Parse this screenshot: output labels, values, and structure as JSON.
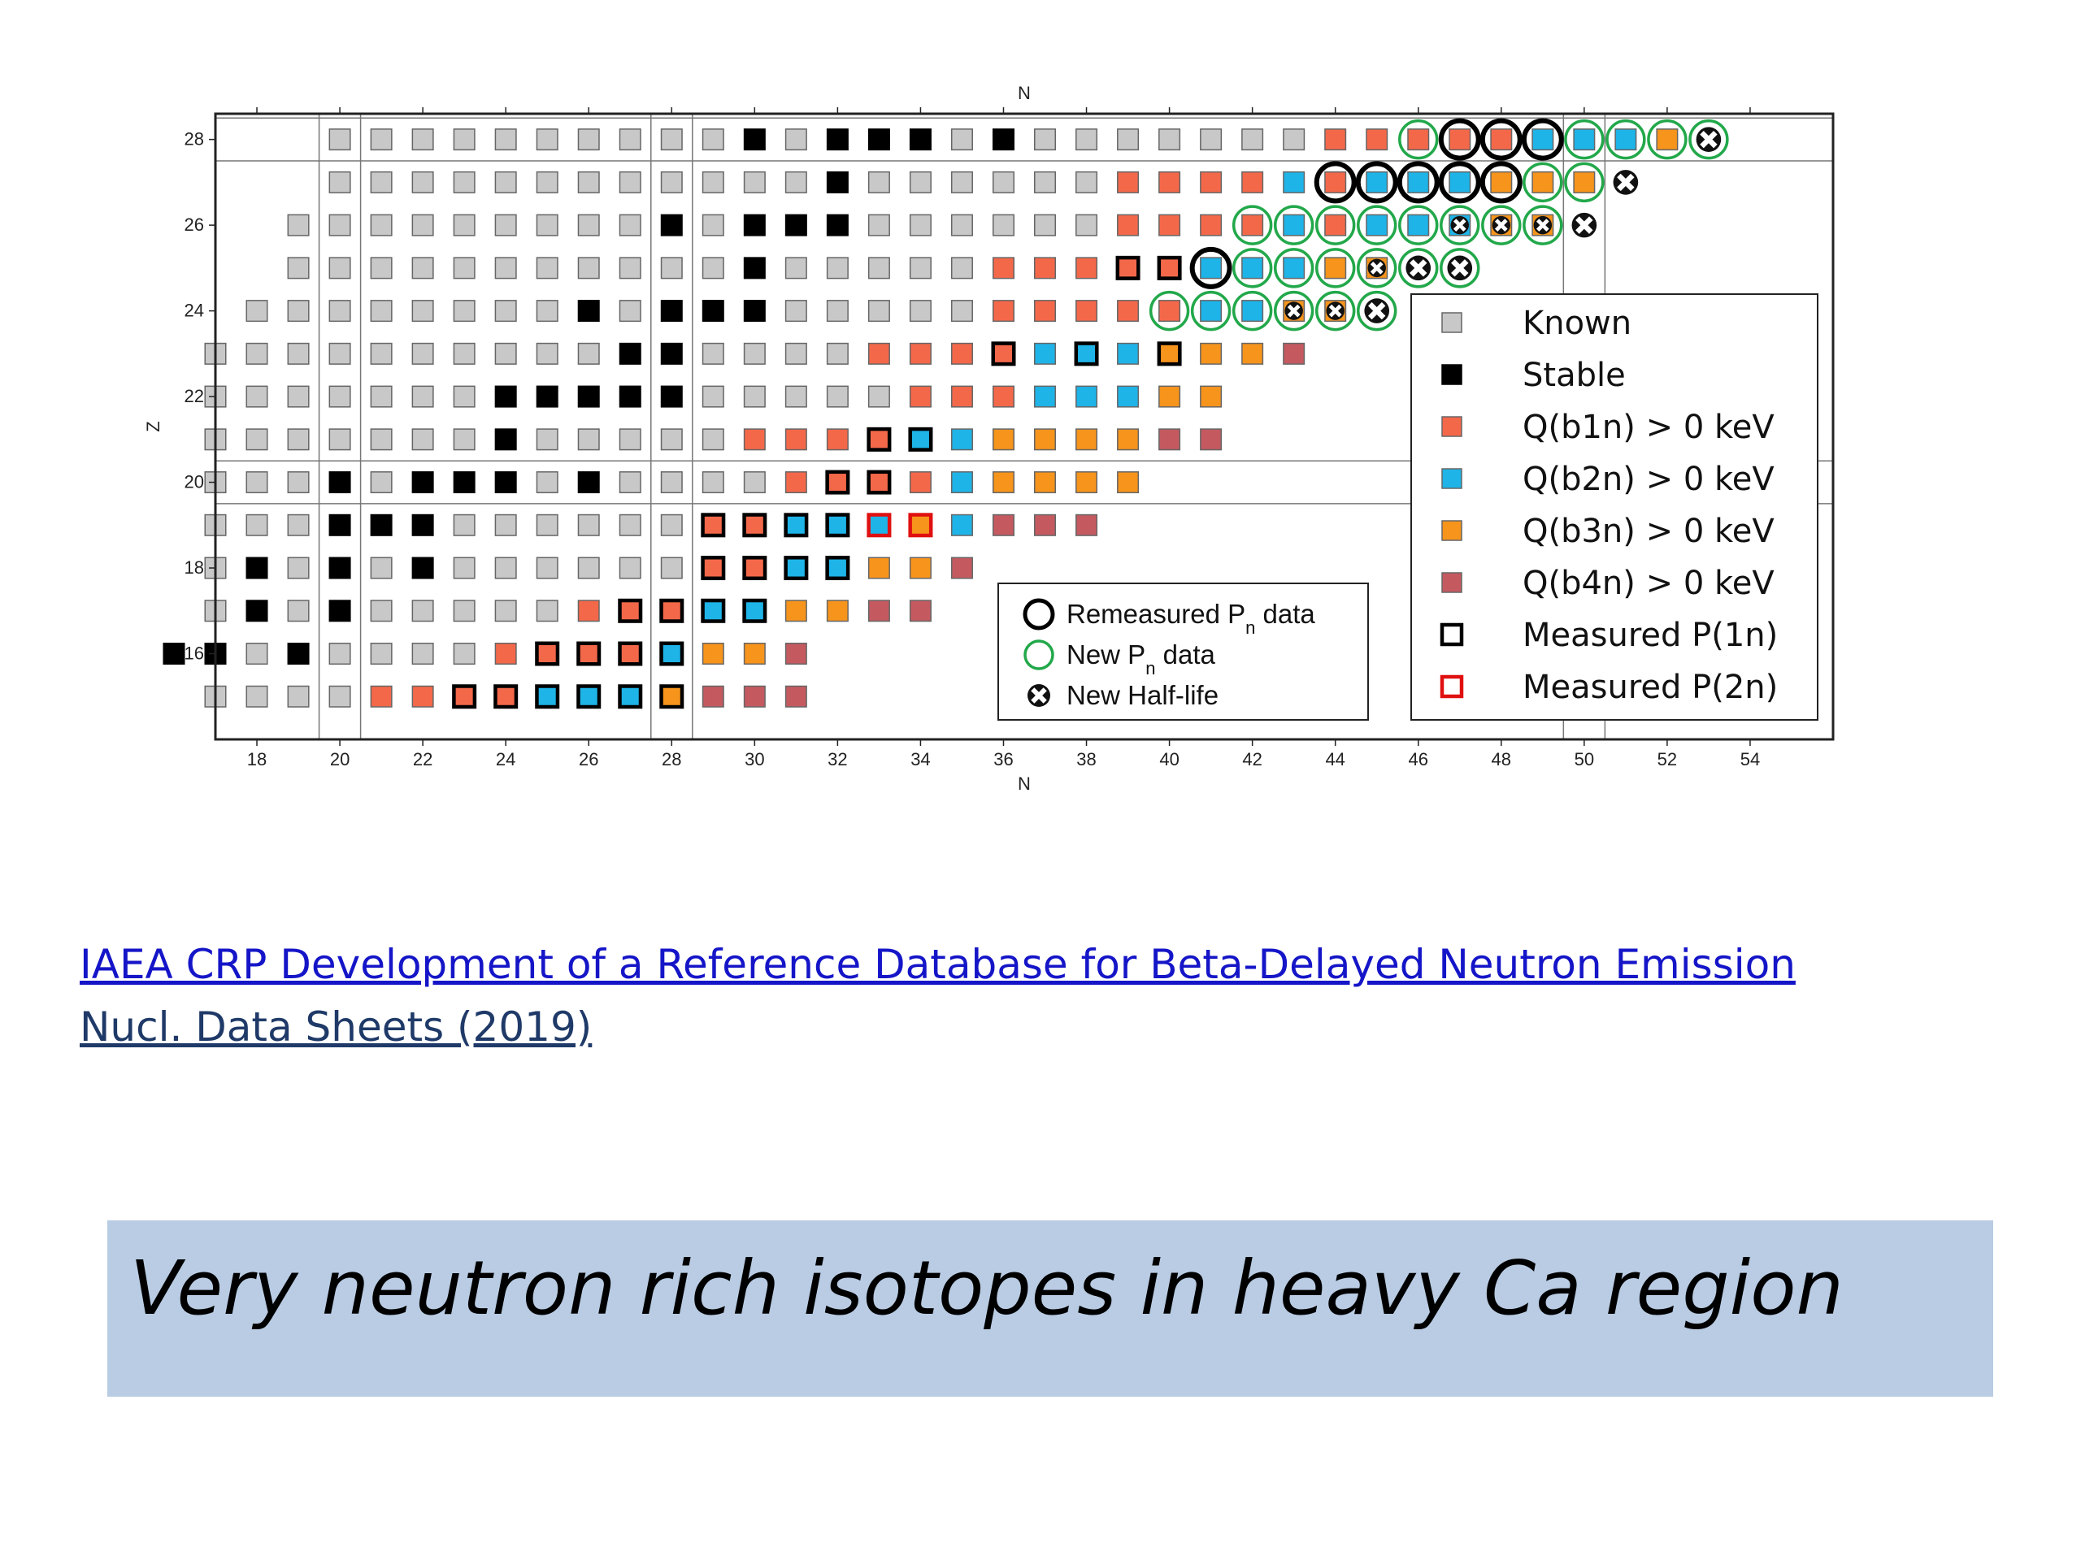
{
  "chart_data": {
    "type": "scatter",
    "title": "",
    "xlabel": "N",
    "ylabel": "Z",
    "xlim": [
      17,
      56
    ],
    "ylim": [
      14,
      28.6
    ],
    "x_ticks": [
      "18",
      "20",
      "22",
      "24",
      "26",
      "28",
      "30",
      "32",
      "34",
      "36",
      "38",
      "40",
      "42",
      "44",
      "46",
      "48",
      "50",
      "52",
      "54"
    ],
    "y_ticks": [
      "16",
      "18",
      "20",
      "22",
      "24",
      "26",
      "28"
    ],
    "magic_lines": {
      "N": [
        20,
        28,
        50
      ],
      "Z": [
        20,
        28
      ]
    },
    "colors": {
      "Known": "#c8c8c8",
      "Stable": "#000000",
      "Qb1n": "#f4684a",
      "Qb2n": "#1eb4e8",
      "Qb3n": "#f6941c",
      "Qb4n": "#c45a60",
      "remeasured_ring": "#000000",
      "new_pn_ring": "#22a84a",
      "measured_p2n": "#e01010"
    },
    "legend": [
      {
        "key": "Known",
        "label": "Known"
      },
      {
        "key": "Stable",
        "label": "Stable"
      },
      {
        "key": "Qb1n",
        "label": "Q(b1n) > 0 keV"
      },
      {
        "key": "Qb2n",
        "label": "Q(b2n) > 0 keV"
      },
      {
        "key": "Qb3n",
        "label": "Q(b3n) > 0 keV"
      },
      {
        "key": "Qb4n",
        "label": "Q(b4n) > 0 keV"
      },
      {
        "key": "P1n",
        "label": "Measured P(1n)"
      },
      {
        "key": "P2n",
        "label": "Measured P(2n)"
      }
    ],
    "legend2": [
      {
        "key": "remeasured",
        "text": "Remeasured P",
        "sub": "n",
        "suffix": " data"
      },
      {
        "key": "newpn",
        "text": "New P",
        "sub": "n",
        "suffix": " data"
      },
      {
        "key": "halflife",
        "text": "New Half-life",
        "sub": "",
        "suffix": ""
      }
    ],
    "note": "Cell codes: K=Known, S=Stable, 1..4=Q(b1n)..Q(b4n); suffix p=Measured P(1n), q=Measured P(2n), b=Remeasured Pn, g=New Pn, h=New Half-life. Each row lists cells starting at N=start.",
    "rows": [
      {
        "z": 28,
        "start": 20,
        "cells": [
          "K",
          "K",
          "K",
          "K",
          "K",
          "K",
          "K",
          "K",
          "K",
          "K",
          "S",
          "K",
          "S",
          "S",
          "S",
          "K",
          "S",
          "K",
          "K",
          "K",
          "K",
          "K",
          "K",
          "K",
          "1",
          "1",
          "1g",
          "1b",
          "1b",
          "2b",
          "2g",
          "2g",
          "3g",
          "hg"
        ]
      },
      {
        "z": 27,
        "start": 20,
        "cells": [
          "K",
          "K",
          "K",
          "K",
          "K",
          "K",
          "K",
          "K",
          "K",
          "K",
          "K",
          "K",
          "S",
          "K",
          "K",
          "K",
          "K",
          "K",
          "K",
          "1",
          "1",
          "1",
          "1",
          "2",
          "1b",
          "2b",
          "2b",
          "2b",
          "3b",
          "3g",
          "3g",
          "h"
        ]
      },
      {
        "z": 26,
        "start": 19,
        "cells": [
          "K",
          "K",
          "K",
          "K",
          "K",
          "K",
          "K",
          "K",
          "K",
          "S",
          "K",
          "S",
          "S",
          "S",
          "K",
          "K",
          "K",
          "K",
          "K",
          "K",
          "1",
          "1",
          "1",
          "1g",
          "2g",
          "1g",
          "2g",
          "2g",
          "2hg",
          "3hg",
          "3hg",
          "h"
        ]
      },
      {
        "z": 25,
        "start": 19,
        "cells": [
          "K",
          "K",
          "K",
          "K",
          "K",
          "K",
          "K",
          "K",
          "K",
          "K",
          "K",
          "S",
          "K",
          "K",
          "K",
          "K",
          "K",
          "1",
          "1",
          "1",
          "1p",
          "1p",
          "2b",
          "2g",
          "2g",
          "3g",
          "3hg",
          "hg",
          "hg"
        ]
      },
      {
        "z": 24,
        "start": 18,
        "cells": [
          "K",
          "K",
          "K",
          "K",
          "K",
          "K",
          "K",
          "K",
          "S",
          "K",
          "S",
          "S",
          "S",
          "K",
          "K",
          "K",
          "K",
          "K",
          "1",
          "1",
          "1",
          "1",
          "1g",
          "2g",
          "2g",
          "3hg",
          "3hg",
          "hg"
        ]
      },
      {
        "z": 23,
        "start": 17,
        "cells": [
          "K",
          "K",
          "K",
          "K",
          "K",
          "K",
          "K",
          "K",
          "K",
          "K",
          "S",
          "S",
          "K",
          "K",
          "K",
          "K",
          "1",
          "1",
          "1",
          "1p",
          "2",
          "2p",
          "2",
          "3p",
          "3",
          "3",
          "4"
        ]
      },
      {
        "z": 22,
        "start": 17,
        "cells": [
          "K",
          "K",
          "K",
          "K",
          "K",
          "K",
          "K",
          "S",
          "S",
          "S",
          "S",
          "S",
          "K",
          "K",
          "K",
          "K",
          "K",
          "1",
          "1",
          "1",
          "2",
          "2",
          "2",
          "3",
          "3"
        ]
      },
      {
        "z": 21,
        "start": 17,
        "cells": [
          "K",
          "K",
          "K",
          "K",
          "K",
          "K",
          "K",
          "S",
          "K",
          "K",
          "K",
          "K",
          "K",
          "1",
          "1",
          "1",
          "1p",
          "2p",
          "2",
          "3",
          "3",
          "3",
          "3",
          "4",
          "4"
        ]
      },
      {
        "z": 20,
        "start": 17,
        "cells": [
          "K",
          "K",
          "K",
          "S",
          "K",
          "S",
          "S",
          "S",
          "K",
          "S",
          "K",
          "K",
          "K",
          "K",
          "1",
          "1p",
          "1p",
          "1",
          "2",
          "3",
          "3",
          "3",
          "3"
        ]
      },
      {
        "z": 19,
        "start": 17,
        "cells": [
          "K",
          "K",
          "K",
          "S",
          "S",
          "S",
          "K",
          "K",
          "K",
          "K",
          "K",
          "K",
          "1p",
          "1p",
          "2p",
          "2p",
          "2q",
          "3q",
          "2",
          "4",
          "4",
          "4"
        ]
      },
      {
        "z": 18,
        "start": 17,
        "cells": [
          "K",
          "S",
          "K",
          "S",
          "K",
          "S",
          "K",
          "K",
          "K",
          "K",
          "K",
          "K",
          "1p",
          "1p",
          "2p",
          "2p",
          "3",
          "3",
          "4"
        ]
      },
      {
        "z": 17,
        "start": 17,
        "cells": [
          "K",
          "S",
          "K",
          "S",
          "K",
          "K",
          "K",
          "K",
          "K",
          "1",
          "1p",
          "1p",
          "2p",
          "2p",
          "3",
          "3",
          "4",
          "4"
        ]
      },
      {
        "z": 16,
        "start": 16,
        "cells": [
          "S",
          "S",
          "K",
          "S",
          "K",
          "K",
          "K",
          "K",
          "1",
          "1p",
          "1p",
          "1p",
          "2p",
          "3",
          "3",
          "4"
        ]
      },
      {
        "z": 15,
        "start": 17,
        "cells": [
          "K",
          "K",
          "K",
          "K",
          "1",
          "1",
          "1p",
          "1p",
          "2p",
          "2p",
          "2p",
          "3p",
          "4",
          "4",
          "4"
        ]
      }
    ]
  },
  "links": {
    "line1": "IAEA CRP   Development of a Reference Database for Beta-Delayed Neutron Emission",
    "line2": "Nucl. Data Sheets (2019)"
  },
  "callout": {
    "text": "Very neutron rich isotopes in heavy Ca region"
  }
}
